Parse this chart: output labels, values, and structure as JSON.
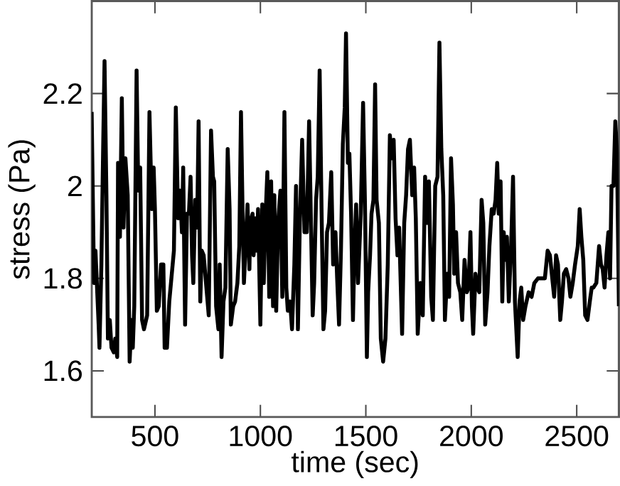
{
  "chart_data": {
    "type": "line",
    "xlabel": "time (sec)",
    "ylabel": "stress (Pa)",
    "xlim": [
      200,
      2700
    ],
    "ylim": [
      1.5,
      2.4
    ],
    "xticks": [
      500,
      1000,
      1500,
      2000,
      2500
    ],
    "yticks": [
      1.6,
      1.8,
      2,
      2.2
    ],
    "grid": false,
    "marker": "none",
    "line_style": "solid",
    "series": [
      {
        "color": "#000000",
        "x": [
          200,
          211,
          218,
          233,
          237,
          246,
          255,
          261,
          270,
          277,
          286,
          294,
          305,
          312,
          321,
          325,
          334,
          343,
          351,
          360,
          371,
          380,
          389,
          395,
          402,
          413,
          421,
          430,
          439,
          448,
          463,
          474,
          485,
          494,
          500,
          509,
          518,
          529,
          540,
          546,
          557,
          568,
          590,
          599,
          610,
          619,
          628,
          634,
          643,
          652,
          661,
          669,
          676,
          682,
          691,
          700,
          707,
          715,
          722,
          731,
          744,
          755,
          766,
          775,
          781,
          790,
          801,
          807,
          816,
          825,
          834,
          845,
          854,
          860,
          871,
          880,
          891,
          900,
          908,
          915,
          922,
          930,
          939,
          948,
          952,
          963,
          968,
          976,
          983,
          989,
          1000,
          1009,
          1016,
          1025,
          1033,
          1042,
          1051,
          1060,
          1066,
          1075,
          1084,
          1095,
          1104,
          1114,
          1123,
          1130,
          1141,
          1150,
          1161,
          1169,
          1178,
          1187,
          1198,
          1209,
          1220,
          1231,
          1239,
          1248,
          1255,
          1264,
          1272,
          1281,
          1290,
          1299,
          1307,
          1316,
          1325,
          1336,
          1345,
          1356,
          1364,
          1373,
          1382,
          1391,
          1400,
          1406,
          1415,
          1422,
          1430,
          1439,
          1446,
          1454,
          1463,
          1476,
          1487,
          1496,
          1505,
          1511,
          1520,
          1527,
          1536,
          1544,
          1551,
          1562,
          1571,
          1582,
          1593,
          1604,
          1614,
          1623,
          1632,
          1641,
          1650,
          1658,
          1672,
          1682,
          1691,
          1700,
          1709,
          1720,
          1729,
          1737,
          1746,
          1759,
          1770,
          1781,
          1790,
          1799,
          1810,
          1818,
          1829,
          1840,
          1849,
          1858,
          1867,
          1875,
          1886,
          1895,
          1904,
          1913,
          1919,
          1928,
          1937,
          1948,
          1957,
          1968,
          1979,
          1987,
          1996,
          2003,
          2009,
          2020,
          2029,
          2038,
          2049,
          2057,
          2066,
          2077,
          2086,
          2097,
          2106,
          2115,
          2123,
          2130,
          2139,
          2147,
          2154,
          2161,
          2169,
          2178,
          2189,
          2198,
          2207,
          2220,
          2229,
          2237,
          2246,
          2257,
          2272,
          2286,
          2299,
          2316,
          2334,
          2349,
          2362,
          2373,
          2384,
          2393,
          2402,
          2411,
          2422,
          2430,
          2439,
          2450,
          2461,
          2470,
          2481,
          2492,
          2505,
          2514,
          2522,
          2531,
          2540,
          2551,
          2562,
          2571,
          2579,
          2593,
          2606,
          2615,
          2623,
          2632,
          2641,
          2650,
          2658,
          2665,
          2674,
          2683,
          2691,
          2700
        ],
        "values": [
          2.16,
          1.79,
          1.86,
          1.7,
          1.65,
          1.83,
          2.1,
          2.27,
          1.98,
          1.67,
          1.71,
          1.65,
          1.64,
          1.67,
          1.63,
          2.05,
          1.89,
          2.19,
          1.91,
          2.06,
          1.98,
          1.62,
          1.71,
          1.65,
          1.74,
          2.25,
          1.99,
          2.04,
          1.71,
          1.69,
          1.72,
          2.16,
          1.95,
          2.04,
          1.95,
          1.73,
          1.74,
          1.83,
          1.83,
          1.65,
          1.65,
          1.75,
          1.86,
          2.17,
          1.93,
          1.99,
          1.9,
          2.04,
          1.7,
          1.94,
          1.94,
          2.02,
          1.85,
          1.79,
          1.97,
          1.91,
          2.14,
          1.75,
          1.86,
          1.85,
          1.78,
          1.72,
          2.12,
          2.02,
          2.01,
          1.74,
          1.69,
          1.83,
          1.63,
          1.75,
          1.78,
          2.08,
          1.95,
          1.7,
          1.74,
          1.75,
          1.79,
          1.87,
          2.16,
          1.96,
          1.79,
          1.87,
          1.96,
          1.82,
          1.92,
          1.94,
          1.85,
          1.93,
          1.86,
          1.95,
          1.7,
          1.96,
          1.79,
          1.94,
          2.03,
          1.76,
          2.01,
          1.74,
          1.98,
          1.73,
          1.92,
          1.99,
          1.76,
          2.16,
          1.78,
          1.73,
          1.75,
          1.69,
          1.83,
          2.0,
          1.69,
          1.92,
          2.1,
          1.9,
          1.9,
          2.14,
          1.94,
          1.72,
          1.79,
          1.97,
          2.02,
          2.25,
          1.95,
          1.69,
          1.73,
          1.9,
          1.92,
          2.03,
          1.83,
          1.9,
          1.8,
          1.7,
          1.86,
          2.09,
          2.17,
          2.33,
          2.05,
          2.07,
          1.94,
          1.71,
          1.86,
          1.96,
          1.79,
          1.94,
          2.18,
          1.96,
          1.63,
          1.77,
          1.85,
          1.94,
          1.97,
          2.22,
          1.97,
          1.92,
          1.67,
          1.62,
          1.67,
          1.83,
          2.11,
          2.06,
          2.1,
          1.93,
          1.85,
          1.91,
          1.68,
          1.92,
          1.98,
          2.08,
          2.1,
          1.98,
          2.04,
          1.93,
          1.68,
          1.79,
          1.72,
          2.02,
          1.92,
          2.01,
          1.76,
          1.71,
          2.0,
          2.02,
          2.31,
          2.08,
          1.98,
          1.71,
          1.81,
          1.76,
          2.06,
          1.96,
          1.81,
          1.9,
          1.79,
          1.77,
          1.71,
          1.84,
          1.77,
          1.78,
          1.9,
          1.74,
          1.68,
          1.81,
          1.78,
          1.77,
          1.97,
          1.92,
          1.7,
          1.77,
          1.87,
          1.95,
          1.94,
          1.97,
          2.05,
          1.94,
          2.01,
          1.75,
          1.9,
          1.84,
          1.89,
          1.75,
          1.87,
          2.02,
          1.75,
          1.63,
          1.75,
          1.78,
          1.71,
          1.74,
          1.77,
          1.76,
          1.79,
          1.8,
          1.8,
          1.8,
          1.86,
          1.85,
          1.8,
          1.76,
          1.85,
          1.83,
          1.71,
          1.75,
          1.81,
          1.82,
          1.8,
          1.76,
          1.79,
          1.83,
          1.87,
          1.95,
          1.89,
          1.84,
          1.72,
          1.71,
          1.75,
          1.78,
          1.78,
          1.79,
          1.87,
          1.83,
          1.82,
          1.78,
          1.85,
          1.9,
          1.8,
          2.0,
          2.0,
          2.14,
          2.07,
          1.74
        ]
      }
    ]
  }
}
